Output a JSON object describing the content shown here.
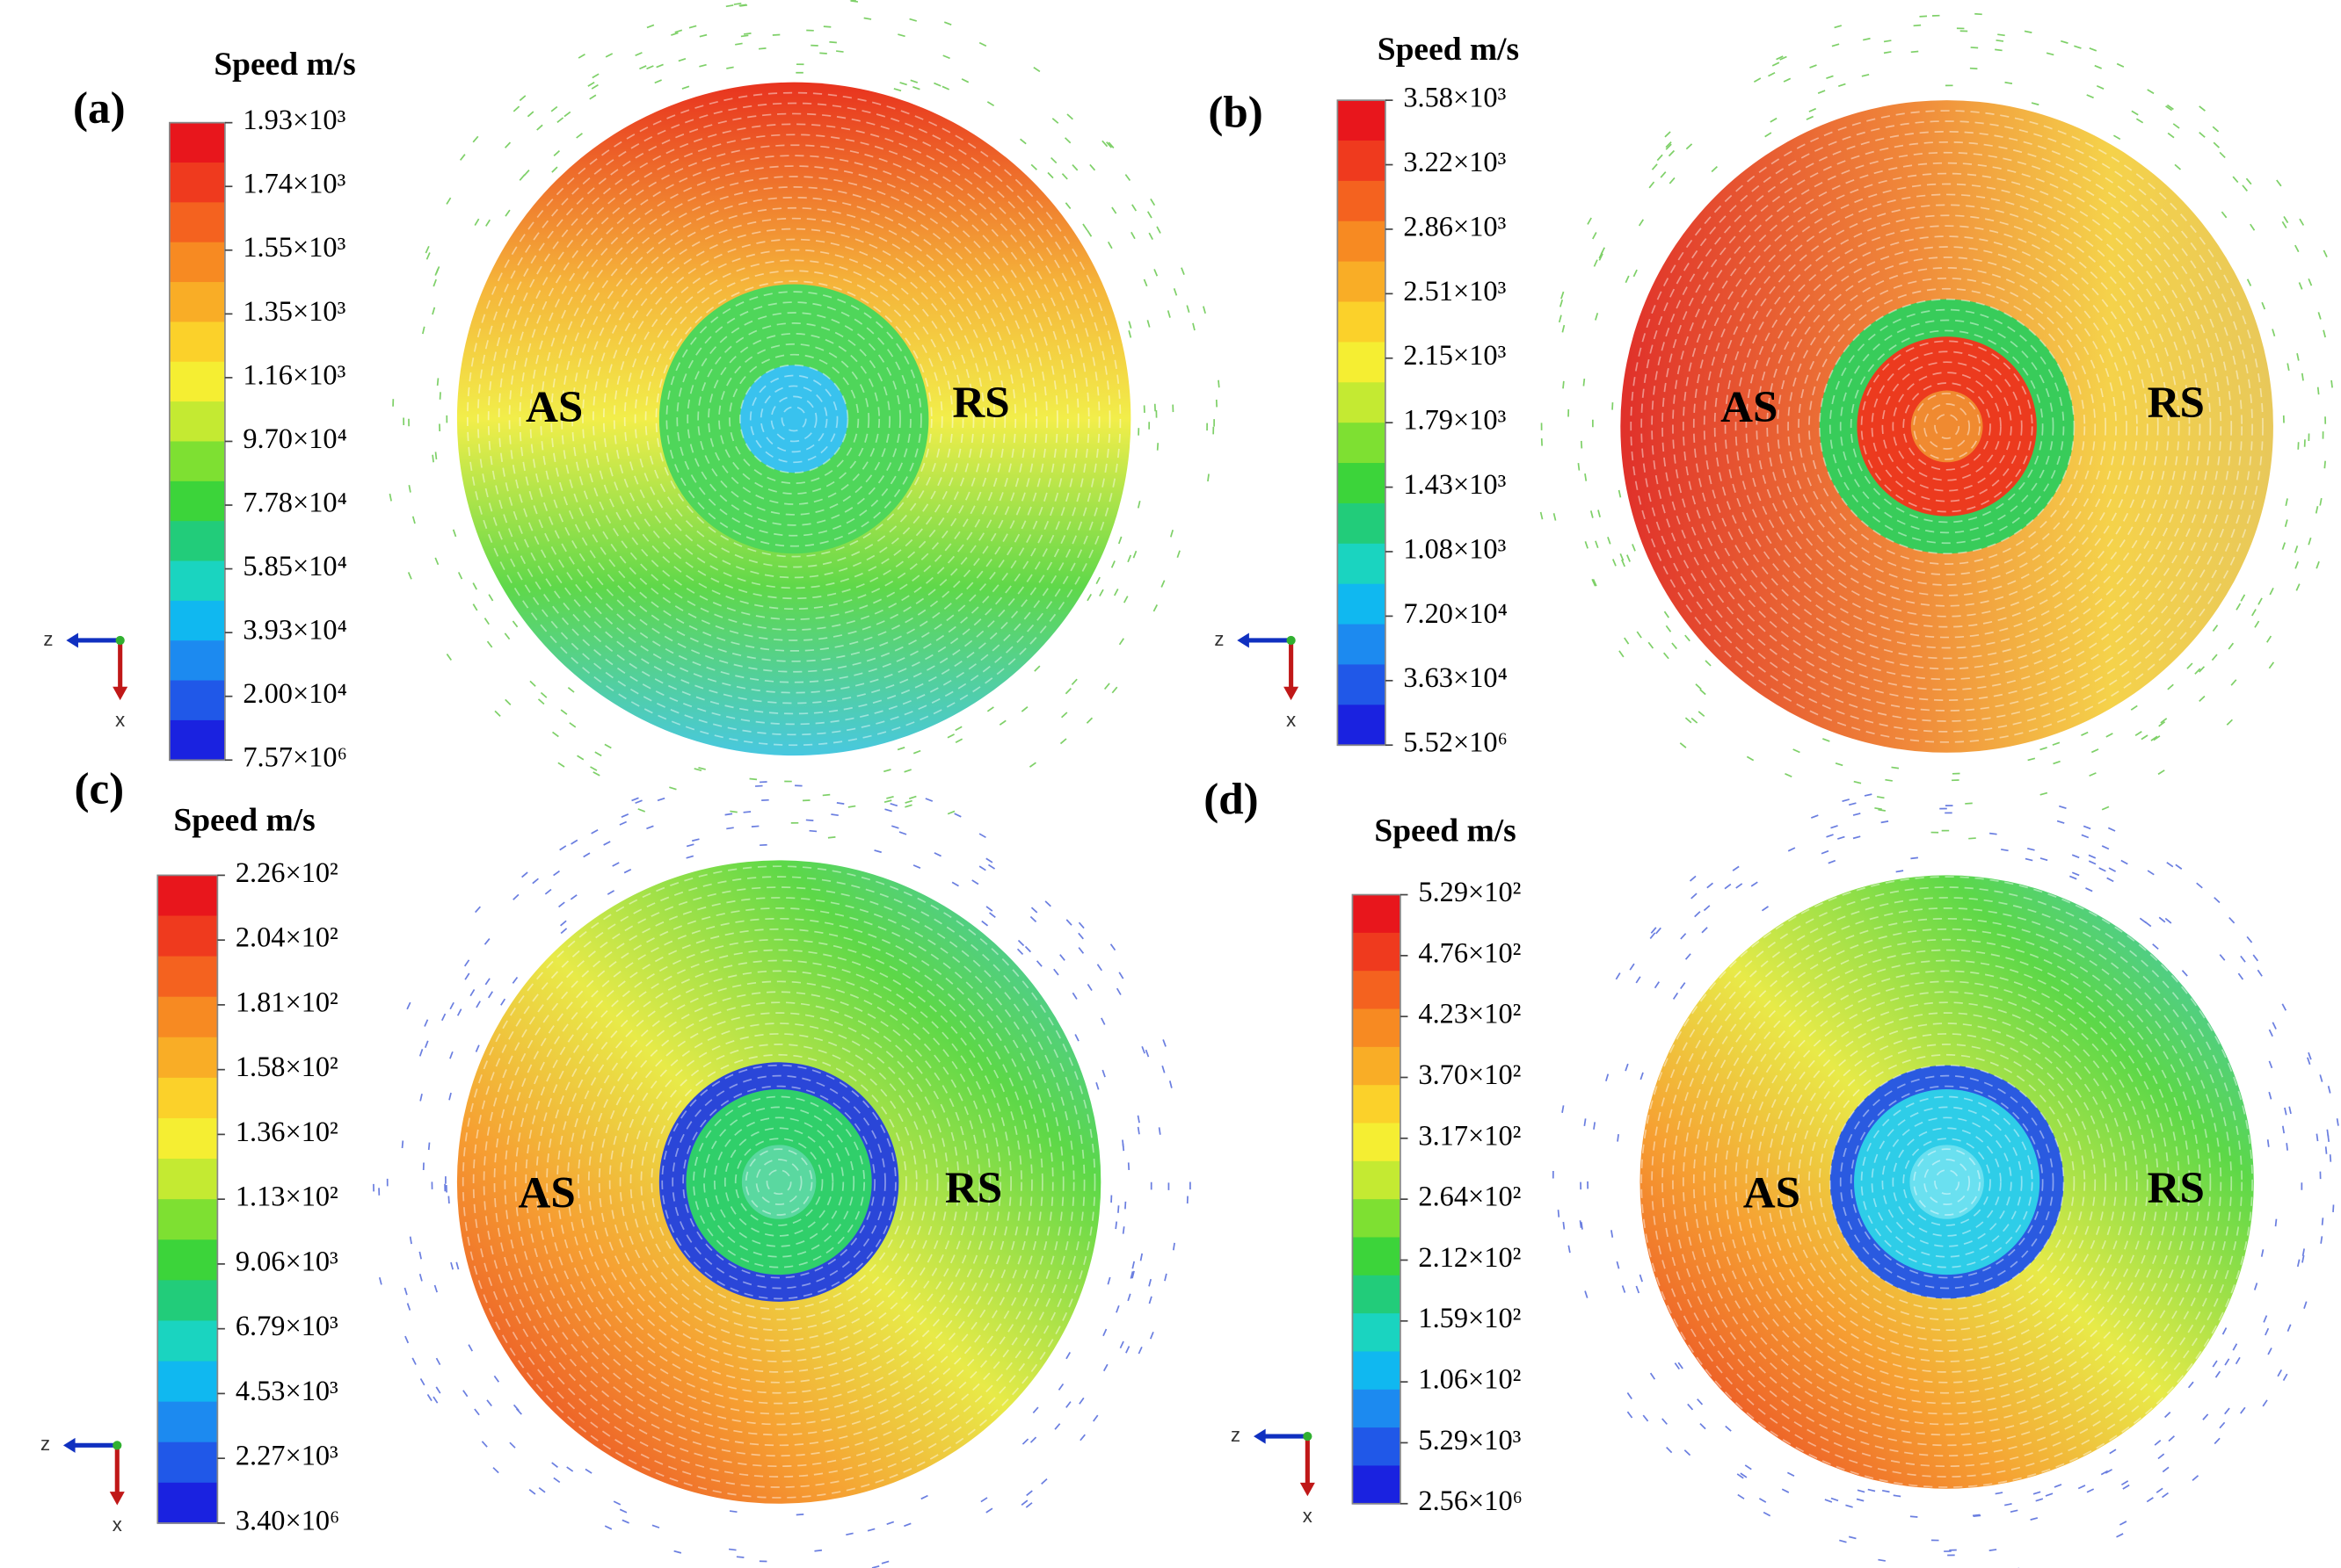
{
  "panels": [
    {
      "label": "(a)",
      "legend_title": "Speed m/s",
      "ticks": [
        "1.93×10³",
        "1.74×10³",
        "1.55×10³",
        "1.35×10³",
        "1.16×10³",
        "9.70×10⁴",
        "7.78×10⁴",
        "5.85×10⁴",
        "3.93×10⁴",
        "2.00×10⁴",
        "7.57×10⁶"
      ],
      "left_label": "AS",
      "right_label": "RS",
      "axis_labels": [
        "z",
        "x"
      ]
    },
    {
      "label": "(b)",
      "legend_title": "Speed m/s",
      "ticks": [
        "3.58×10³",
        "3.22×10³",
        "2.86×10³",
        "2.51×10³",
        "2.15×10³",
        "1.79×10³",
        "1.43×10³",
        "1.08×10³",
        "7.20×10⁴",
        "3.63×10⁴",
        "5.52×10⁶"
      ],
      "left_label": "AS",
      "right_label": "RS",
      "axis_labels": [
        "z",
        "x"
      ]
    },
    {
      "label": "(c)",
      "legend_title": "Speed m/s",
      "ticks": [
        "2.26×10²",
        "2.04×10²",
        "1.81×10²",
        "1.58×10²",
        "1.36×10²",
        "1.13×10²",
        "9.06×10³",
        "6.79×10³",
        "4.53×10³",
        "2.27×10³",
        "3.40×10⁶"
      ],
      "left_label": "AS",
      "right_label": "RS",
      "axis_labels": [
        "z",
        "x"
      ]
    },
    {
      "label": "(d)",
      "legend_title": "Speed m/s",
      "ticks": [
        "5.29×10²",
        "4.76×10²",
        "4.23×10²",
        "3.70×10²",
        "3.17×10²",
        "2.64×10²",
        "2.12×10²",
        "1.59×10²",
        "1.06×10²",
        "5.29×10³",
        "2.56×10⁶"
      ],
      "left_label": "AS",
      "right_label": "RS",
      "axis_labels": [
        "z",
        "x"
      ]
    }
  ]
}
